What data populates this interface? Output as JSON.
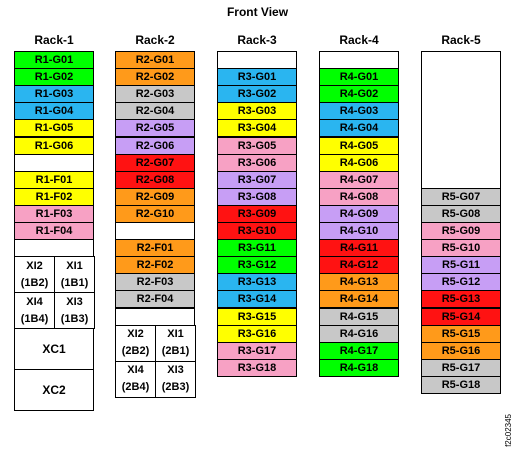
{
  "title": "Front View",
  "figure_id": "f2c02345",
  "colors": {
    "green": "#00ff00",
    "blue": "#2ab5f0",
    "yellow": "#ffff00",
    "pink": "#f7a1c4",
    "orange": "#ff9a1a",
    "gray": "#c8c8c8",
    "purple": "#c79ef5",
    "red": "#ff1212",
    "white": "#ffffff"
  },
  "racks": [
    {
      "name": "Rack-1",
      "slots": [
        {
          "label": "R1-G01",
          "color": "green"
        },
        {
          "label": "R1-G02",
          "color": "green"
        },
        {
          "label": "R1-G03",
          "color": "blue"
        },
        {
          "label": "R1-G04",
          "color": "blue"
        },
        {
          "label": "R1-G05",
          "color": "yellow"
        },
        {
          "label": "R1-G06",
          "color": "yellow"
        },
        {
          "label": "",
          "color": "white"
        },
        {
          "label": "R1-F01",
          "color": "yellow"
        },
        {
          "label": "R1-F02",
          "color": "yellow"
        },
        {
          "label": "R1-F03",
          "color": "pink"
        },
        {
          "label": "R1-F04",
          "color": "pink"
        },
        {
          "label": "",
          "color": "white"
        }
      ],
      "xi": [
        {
          "label": "XI2",
          "sub": "(1B2)"
        },
        {
          "label": "XI1",
          "sub": "(1B1)"
        },
        {
          "label": "XI4",
          "sub": "(1B4)"
        },
        {
          "label": "XI3",
          "sub": "(1B3)"
        }
      ],
      "xc": [
        "XC1",
        "XC2"
      ]
    },
    {
      "name": "Rack-2",
      "slots": [
        {
          "label": "R2-G01",
          "color": "orange"
        },
        {
          "label": "R2-G02",
          "color": "orange"
        },
        {
          "label": "R2-G03",
          "color": "gray"
        },
        {
          "label": "R2-G04",
          "color": "gray"
        },
        {
          "label": "R2-G05",
          "color": "purple"
        },
        {
          "label": "R2-G06",
          "color": "purple"
        },
        {
          "label": "R2-G07",
          "color": "red"
        },
        {
          "label": "R2-G08",
          "color": "red"
        },
        {
          "label": "R2-G09",
          "color": "orange"
        },
        {
          "label": "R2-G10",
          "color": "orange"
        },
        {
          "label": "",
          "color": "white"
        },
        {
          "label": "R2-F01",
          "color": "orange"
        },
        {
          "label": "R2-F02",
          "color": "orange"
        },
        {
          "label": "R2-F03",
          "color": "gray"
        },
        {
          "label": "R2-F04",
          "color": "gray"
        },
        {
          "label": "",
          "color": "white"
        }
      ],
      "xi": [
        {
          "label": "XI2",
          "sub": "(2B2)"
        },
        {
          "label": "XI1",
          "sub": "(2B1)"
        },
        {
          "label": "XI4",
          "sub": "(2B4)"
        },
        {
          "label": "XI3",
          "sub": "(2B3)"
        }
      ]
    },
    {
      "name": "Rack-3",
      "slots": [
        {
          "label": "",
          "color": "white"
        },
        {
          "label": "R3-G01",
          "color": "blue"
        },
        {
          "label": "R3-G02",
          "color": "blue"
        },
        {
          "label": "R3-G03",
          "color": "yellow"
        },
        {
          "label": "R3-G04",
          "color": "yellow"
        },
        {
          "label": "R3-G05",
          "color": "pink"
        },
        {
          "label": "R3-G06",
          "color": "pink"
        },
        {
          "label": "R3-G07",
          "color": "purple"
        },
        {
          "label": "R3-G08",
          "color": "purple"
        },
        {
          "label": "R3-G09",
          "color": "red"
        },
        {
          "label": "R3-G10",
          "color": "red"
        },
        {
          "label": "R3-G11",
          "color": "green"
        },
        {
          "label": "R3-G12",
          "color": "green"
        },
        {
          "label": "R3-G13",
          "color": "blue"
        },
        {
          "label": "R3-G14",
          "color": "blue"
        },
        {
          "label": "R3-G15",
          "color": "yellow"
        },
        {
          "label": "R3-G16",
          "color": "yellow"
        },
        {
          "label": "R3-G17",
          "color": "pink"
        },
        {
          "label": "R3-G18",
          "color": "pink"
        }
      ]
    },
    {
      "name": "Rack-4",
      "slots": [
        {
          "label": "",
          "color": "white"
        },
        {
          "label": "R4-G01",
          "color": "green"
        },
        {
          "label": "R4-G02",
          "color": "green"
        },
        {
          "label": "R4-G03",
          "color": "blue"
        },
        {
          "label": "R4-G04",
          "color": "blue"
        },
        {
          "label": "R4-G05",
          "color": "yellow"
        },
        {
          "label": "R4-G06",
          "color": "yellow"
        },
        {
          "label": "R4-G07",
          "color": "pink"
        },
        {
          "label": "R4-G08",
          "color": "pink"
        },
        {
          "label": "R4-G09",
          "color": "purple"
        },
        {
          "label": "R4-G10",
          "color": "purple"
        },
        {
          "label": "R4-G11",
          "color": "red"
        },
        {
          "label": "R4-G12",
          "color": "red"
        },
        {
          "label": "R4-G13",
          "color": "orange"
        },
        {
          "label": "R4-G14",
          "color": "orange"
        },
        {
          "label": "R4-G15",
          "color": "gray"
        },
        {
          "label": "R4-G16",
          "color": "gray"
        },
        {
          "label": "R4-G17",
          "color": "green"
        },
        {
          "label": "R4-G18",
          "color": "green"
        }
      ]
    },
    {
      "name": "Rack-5",
      "slots": [
        {
          "label": "",
          "color": "white"
        },
        {
          "label": "R5-G07",
          "color": "gray"
        },
        {
          "label": "R5-G08",
          "color": "gray"
        },
        {
          "label": "R5-G09",
          "color": "pink"
        },
        {
          "label": "R5-G10",
          "color": "pink"
        },
        {
          "label": "R5-G11",
          "color": "purple"
        },
        {
          "label": "R5-G12",
          "color": "purple"
        },
        {
          "label": "R5-G13",
          "color": "red"
        },
        {
          "label": "R5-G14",
          "color": "red"
        },
        {
          "label": "R5-G15",
          "color": "orange"
        },
        {
          "label": "R5-G16",
          "color": "orange"
        },
        {
          "label": "R5-G17",
          "color": "gray"
        },
        {
          "label": "R5-G18",
          "color": "gray"
        }
      ]
    }
  ]
}
